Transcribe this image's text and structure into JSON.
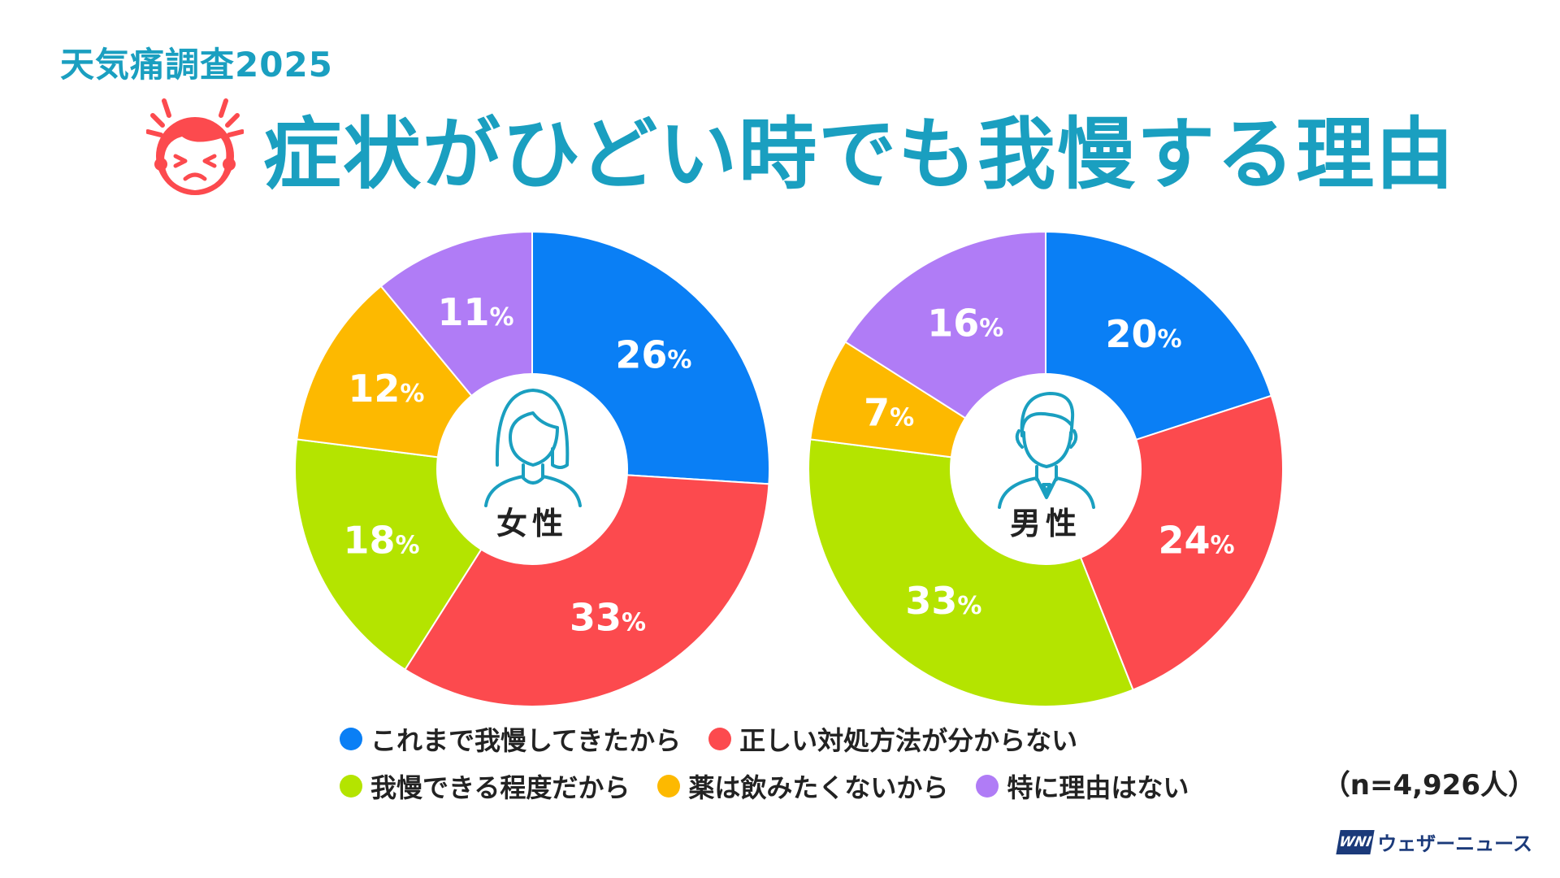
{
  "header": {
    "subtitle": "天気痛調査2025",
    "title": "症状がひどい時でも我慢する理由"
  },
  "colors": {
    "accent": "#1a9fc0",
    "blue": "#0a7ff5",
    "red": "#fc4a4e",
    "green": "#b4e400",
    "yellow": "#fdb900",
    "purple": "#b07cf6",
    "icon": "#1a9fc0"
  },
  "legend": [
    {
      "label": "これまで我慢してきたから",
      "color": "#0a7ff5"
    },
    {
      "label": "正しい対処方法が分からない",
      "color": "#fc4a4e"
    },
    {
      "label": "我慢できる程度だから",
      "color": "#b4e400"
    },
    {
      "label": "薬は飲みたくないから",
      "color": "#fdb900"
    },
    {
      "label": "特に理由はない",
      "color": "#b07cf6"
    }
  ],
  "chart_data": [
    {
      "type": "pie",
      "center_label": "女性",
      "center_icon": "woman-icon",
      "slices": [
        {
          "category": "これまで我慢してきたから",
          "value": 26,
          "color": "#0a7ff5"
        },
        {
          "category": "正しい対処方法が分からない",
          "value": 33,
          "color": "#fc4a4e"
        },
        {
          "category": "我慢できる程度だから",
          "value": 18,
          "color": "#b4e400"
        },
        {
          "category": "薬は飲みたくないから",
          "value": 12,
          "color": "#fdb900"
        },
        {
          "category": "特に理由はない",
          "value": 11,
          "color": "#b07cf6"
        }
      ],
      "unit": "%"
    },
    {
      "type": "pie",
      "center_label": "男性",
      "center_icon": "man-icon",
      "slices": [
        {
          "category": "これまで我慢してきたから",
          "value": 20,
          "color": "#0a7ff5"
        },
        {
          "category": "正しい対処方法が分からない",
          "value": 24,
          "color": "#fc4a4e"
        },
        {
          "category": "我慢できる程度だから",
          "value": 33,
          "color": "#b4e400"
        },
        {
          "category": "薬は飲みたくないから",
          "value": 7,
          "color": "#fdb900"
        },
        {
          "category": "特に理由はない",
          "value": 16,
          "color": "#b07cf6"
        }
      ],
      "unit": "%"
    }
  ],
  "sample_size": "（n=4,926人）",
  "brand": {
    "logo_text": "WNI",
    "name": "ウェザーニュース"
  }
}
